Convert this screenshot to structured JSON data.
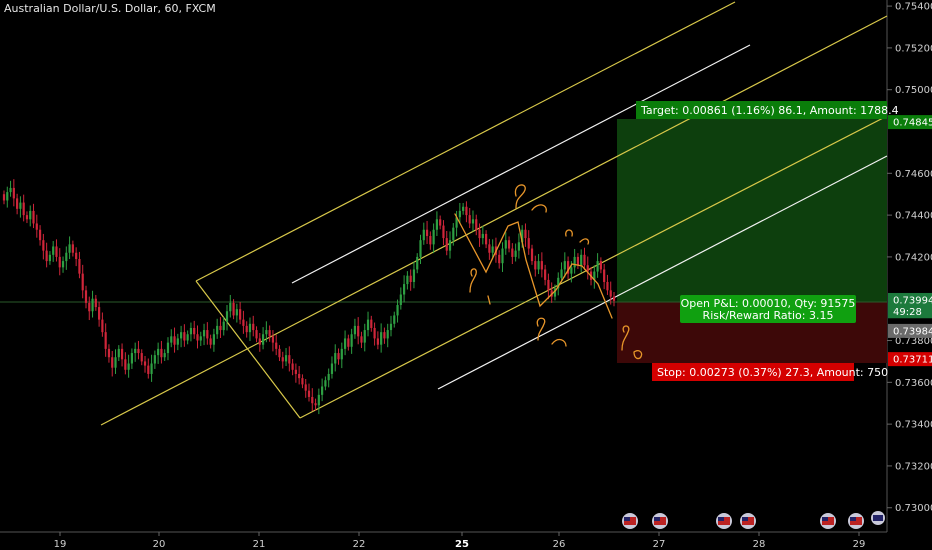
{
  "chart_data": {
    "type": "candlestick",
    "title": "Australian Dollar/U.S. Dollar, 60, FXCM",
    "x_ticks": [
      "19",
      "20",
      "21",
      "22",
      "25",
      "26",
      "27",
      "28",
      "29"
    ],
    "y_ticks": [
      "0.75400",
      "0.75200",
      "0.75000",
      "0.74600",
      "0.74400",
      "0.74200",
      "0.73800",
      "0.73600",
      "0.73400",
      "0.73200",
      "0.73000"
    ],
    "ylim": [
      0.7297,
      0.7541
    ],
    "price_tags": [
      {
        "label": "0.74845",
        "value": 0.74845,
        "color": "#0a7d0a"
      },
      {
        "label": "0.73994",
        "value": 0.73994,
        "color": "#1c7a3c"
      },
      {
        "label": "49:28",
        "value": 0.7394,
        "color": "#1c7a3c"
      },
      {
        "label": "0.73984",
        "value": 0.73846,
        "color": "#6a6a6a"
      },
      {
        "label": "0.73711",
        "value": 0.73711,
        "color": "#d40000"
      }
    ],
    "target_label": "Target: 0.00861 (1.16%) 86.1, Amount: 1788.4",
    "stop_label": "Stop: 0.00273 (0.37%) 27.3, Amount: 750",
    "pnl_label": "Open P&L: 0.00010, Qty: 91575",
    "rr_label": "Risk/Reward Ratio: 3.15",
    "entry": 0.73984,
    "target": 0.74845,
    "stop": 0.73711,
    "close_series": [
      0.7447,
      0.7451,
      0.7453,
      0.7448,
      0.7443,
      0.7446,
      0.744,
      0.7438,
      0.7442,
      0.7436,
      0.7433,
      0.7428,
      0.7423,
      0.7418,
      0.7421,
      0.7425,
      0.742,
      0.7415,
      0.7418,
      0.7422,
      0.7426,
      0.7422,
      0.7419,
      0.7412,
      0.7404,
      0.7398,
      0.7394,
      0.74,
      0.7396,
      0.739,
      0.7384,
      0.7376,
      0.7372,
      0.7367,
      0.7372,
      0.7376,
      0.7371,
      0.7366,
      0.7369,
      0.7374,
      0.7376,
      0.7374,
      0.737,
      0.7368,
      0.7364,
      0.7369,
      0.7373,
      0.7376,
      0.7372,
      0.7374,
      0.7379,
      0.7382,
      0.7378,
      0.7381,
      0.7384,
      0.738,
      0.7383,
      0.7386,
      0.7383,
      0.738,
      0.7382,
      0.7385,
      0.7381,
      0.7378,
      0.7383,
      0.7387,
      0.7385,
      0.7389,
      0.7394,
      0.7398,
      0.7392,
      0.7395,
      0.739,
      0.7387,
      0.7384,
      0.7388,
      0.7385,
      0.7381,
      0.7378,
      0.7383,
      0.7385,
      0.7382,
      0.7379,
      0.7376,
      0.7372,
      0.737,
      0.7373,
      0.7369,
      0.7366,
      0.7364,
      0.7362,
      0.7359,
      0.7356,
      0.7353,
      0.735,
      0.7349,
      0.7354,
      0.7358,
      0.7361,
      0.7364,
      0.7369,
      0.7374,
      0.7371,
      0.7376,
      0.7381,
      0.7377,
      0.7383,
      0.7387,
      0.7382,
      0.7379,
      0.7385,
      0.739,
      0.7386,
      0.7381,
      0.7378,
      0.7384,
      0.7381,
      0.7385,
      0.7388,
      0.7392,
      0.7397,
      0.7402,
      0.7407,
      0.7411,
      0.7408,
      0.7414,
      0.742,
      0.7428,
      0.7433,
      0.743,
      0.7426,
      0.7433,
      0.7438,
      0.7435,
      0.7429,
      0.7423,
      0.7428,
      0.7434,
      0.7439,
      0.7442,
      0.7444,
      0.744,
      0.7436,
      0.7438,
      0.7433,
      0.7429,
      0.7431,
      0.7426,
      0.7422,
      0.7425,
      0.7421,
      0.7417,
      0.7424,
      0.7428,
      0.7424,
      0.742,
      0.7423,
      0.7427,
      0.7433,
      0.7429,
      0.7424,
      0.7418,
      0.7414,
      0.7418,
      0.7414,
      0.7409,
      0.7404,
      0.7401,
      0.7405,
      0.741,
      0.7414,
      0.7418,
      0.7412,
      0.7415,
      0.742,
      0.7416,
      0.7421,
      0.7416,
      0.7413,
      0.7409,
      0.7413,
      0.7418,
      0.7414,
      0.7408,
      0.7404,
      0.7401,
      0.7399
    ]
  }
}
